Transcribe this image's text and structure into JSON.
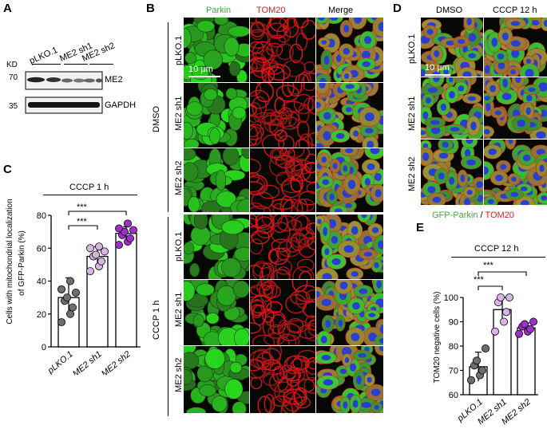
{
  "panelA": {
    "label": "A",
    "kd": "KD",
    "lanes": [
      "pLKO.1",
      "ME2 sh1",
      "ME2 sh2"
    ],
    "mw": [
      "70",
      "35"
    ],
    "bands": [
      "ME2",
      "GAPDH"
    ]
  },
  "panelB": {
    "label": "B",
    "channels": [
      "Parkin",
      "TOM20",
      "Merge"
    ],
    "conditions": [
      "DMSO",
      "CCCP 1 h"
    ],
    "rows": [
      "pLKO.1",
      "ME2 sh1",
      "ME2 sh2",
      "pLKO.1",
      "ME2 sh1",
      "ME2 sh2"
    ],
    "scale": "10 μm",
    "colors": {
      "parkin": "#3dab3d",
      "tom20": "#d42020"
    }
  },
  "panelD": {
    "label": "D",
    "conditions": [
      "DMSO",
      "CCCP 12 h"
    ],
    "rows": [
      "pLKO.1",
      "ME2 sh1",
      "ME2 sh2"
    ],
    "scale": "10 μm",
    "legend_green": "GFP-Parkin",
    "legend_sep": " / ",
    "legend_red": "TOM20"
  },
  "panelC": {
    "label": "C",
    "treatment": "CCCP 1 h",
    "sig": [
      "***",
      "***"
    ]
  },
  "panelE": {
    "label": "E",
    "treatment": "CCCP 12 h",
    "sig": [
      "***",
      "***"
    ]
  },
  "chart_data": [
    {
      "type": "bar",
      "id": "C",
      "categories": [
        "pLKO.1",
        "ME2 sh1",
        "ME2 sh2"
      ],
      "values": [
        30,
        55,
        69
      ],
      "errors": [
        12,
        6,
        4
      ],
      "points": [
        [
          15,
          20,
          24,
          28,
          30,
          33,
          35,
          40
        ],
        [
          46,
          49,
          52,
          55,
          56,
          58,
          60,
          61
        ],
        [
          62,
          64,
          66,
          68,
          70,
          71,
          72,
          75
        ]
      ],
      "colors": [
        "#6e6e6e",
        "#d9b3e6",
        "#9b30c8"
      ],
      "ylabel": "Cells with mitochondrial localization of GFP-Parkin (%)",
      "yticks": [
        0,
        20,
        40,
        60,
        80
      ],
      "ylim": [
        0,
        80
      ]
    },
    {
      "type": "bar",
      "id": "E",
      "categories": [
        "pLKO.1",
        "ME2 sh1",
        "ME2 sh2"
      ],
      "values": [
        71.5,
        95,
        87.5
      ],
      "errors": [
        6,
        5,
        2
      ],
      "points": [
        [
          66,
          68,
          70,
          72,
          74,
          79
        ],
        [
          86,
          90,
          94,
          98,
          100,
          100
        ],
        [
          85,
          86,
          87,
          88,
          89,
          90
        ]
      ],
      "colors": [
        "#6e6e6e",
        "#d9b3e6",
        "#9b30c8"
      ],
      "ylabel": "TOM20 negative cells (%)",
      "yticks": [
        60,
        70,
        80,
        90,
        100
      ],
      "ylim": [
        60,
        100
      ]
    }
  ]
}
